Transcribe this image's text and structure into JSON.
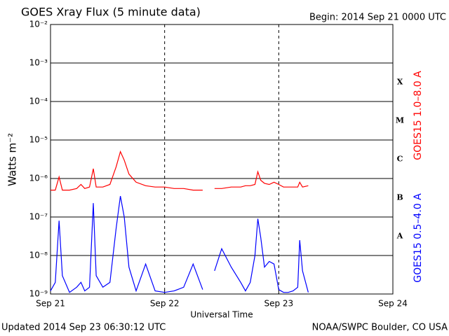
{
  "chart_data": {
    "type": "line",
    "title": "GOES Xray Flux (5 minute data)",
    "subtitle": "Begin:  2014 Sep 21 0000 UTC",
    "xlabel": "Universal Time",
    "ylabel": "Watts m⁻²",
    "footer_left": "Updated 2014 Sep 23 06:30:12 UTC",
    "footer_right": "NOAA/SWPC Boulder, CO USA",
    "log_y": true,
    "grid": true,
    "xlim": [
      0,
      72
    ],
    "xticks": [
      {
        "value": 0,
        "label": "Sep 21"
      },
      {
        "value": 24,
        "label": "Sep 22"
      },
      {
        "value": 48,
        "label": "Sep 23"
      },
      {
        "value": 72,
        "label": "Sep 24"
      }
    ],
    "ylim": [
      1e-09,
      0.01
    ],
    "yticks": [
      {
        "value": 1e-09,
        "label": "10⁻⁹"
      },
      {
        "value": 1e-08,
        "label": "10⁻⁸"
      },
      {
        "value": 1e-07,
        "label": "10⁻⁷"
      },
      {
        "value": 1e-06,
        "label": "10⁻⁶"
      },
      {
        "value": 1e-05,
        "label": "10⁻⁵"
      },
      {
        "value": 0.0001,
        "label": "10⁻⁴"
      },
      {
        "value": 0.001,
        "label": "10⁻³"
      },
      {
        "value": 0.01,
        "label": "10⁻²"
      }
    ],
    "flare_classes": {
      "labels": [
        "A",
        "B",
        "C",
        "M",
        "X"
      ],
      "values": [
        1e-08,
        1e-07,
        1e-06,
        1e-05,
        0.0001
      ]
    },
    "x": [
      0,
      1,
      1.8,
      2.5,
      4,
      5.5,
      6.4,
      7.2,
      8.2,
      9,
      9.6,
      11,
      12.5,
      13.8,
      14.7,
      15.5,
      16.5,
      18,
      20,
      22,
      24,
      26,
      28,
      30,
      32,
      33,
      34.5,
      36,
      38,
      40,
      41,
      42,
      43,
      43.6,
      44.2,
      45,
      46,
      47,
      48,
      49,
      50,
      51,
      52,
      52.4,
      53,
      54.2
    ],
    "series": [
      {
        "name": "GOES15 1.0–8.0 A",
        "color": "#ff0000",
        "values": [
          5e-07,
          5e-07,
          1.1e-06,
          5e-07,
          5e-07,
          5.5e-07,
          7e-07,
          5.5e-07,
          6e-07,
          1.8e-06,
          6e-07,
          6e-07,
          7e-07,
          2e-06,
          5e-06,
          3e-06,
          1.3e-06,
          8e-07,
          6.5e-07,
          6e-07,
          6e-07,
          5.5e-07,
          5.5e-07,
          5e-07,
          5e-07,
          null,
          5.5e-07,
          5.5e-07,
          6e-07,
          6e-07,
          6.5e-07,
          6.5e-07,
          7e-07,
          1.5e-06,
          9e-07,
          7.5e-07,
          7e-07,
          8e-07,
          7e-07,
          6e-07,
          6e-07,
          6e-07,
          6e-07,
          8e-07,
          6e-07,
          6.5e-07
        ]
      },
      {
        "name": "GOES15 0.5–4.0 A",
        "color": "#0000ff",
        "values": [
          1.2e-09,
          2e-09,
          8e-08,
          3e-09,
          1.1e-09,
          1.5e-09,
          2e-09,
          1.2e-09,
          1.5e-09,
          2.3e-07,
          3e-09,
          1.5e-09,
          2e-09,
          5e-08,
          3.5e-07,
          1e-07,
          5e-09,
          1.2e-09,
          6e-09,
          1.2e-09,
          1.1e-09,
          1.2e-09,
          1.5e-09,
          6e-09,
          1.3e-09,
          null,
          4e-09,
          1.5e-08,
          5e-09,
          2e-09,
          1.2e-09,
          2e-09,
          1e-08,
          9e-08,
          3e-08,
          5e-09,
          7e-09,
          6e-09,
          1.3e-09,
          1.1e-09,
          1.1e-09,
          1.2e-09,
          1.5e-09,
          2.5e-08,
          4e-09,
          1.1e-09
        ]
      }
    ]
  }
}
